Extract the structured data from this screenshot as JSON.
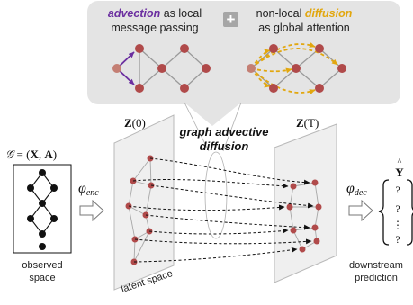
{
  "callout": {
    "advection_word": "advection",
    "advection_rest": " as local",
    "advection_line2": "message passing",
    "plus_symbol": "+",
    "diffusion_prefix": "non-local ",
    "diffusion_word": "diffusion",
    "diffusion_line2": "as global attention"
  },
  "center": {
    "title_line1": "graph advective",
    "title_line2": "diffusion"
  },
  "left": {
    "graph_def_G": "𝒢",
    "graph_def_eq": " = (",
    "graph_def_X": "X",
    "graph_def_comma": ", ",
    "graph_def_A": "A",
    "graph_def_close": ")",
    "label_line1": "observed",
    "label_line2": "space",
    "encoder_phi": "φ",
    "encoder_sub": "enc"
  },
  "planes": {
    "z0_main": "Z",
    "z0_arg": "(0)",
    "zT_main": "Z",
    "zT_arg": "(T)",
    "latent_label": "latent space"
  },
  "right": {
    "decoder_phi": "φ",
    "decoder_sub": "dec",
    "output_hat": "^",
    "output_label": "Y",
    "output_q1": "?",
    "output_q2": "?",
    "output_dots": "⋮",
    "output_q3": "?",
    "label_line1": "downstream",
    "label_line2": "prediction"
  },
  "colors": {
    "advection": "#6b2fa0",
    "diffusion": "#e2a70f",
    "node": "#b04a4a",
    "callout_bg": "#e4e4e4",
    "plane": "#efefef"
  }
}
